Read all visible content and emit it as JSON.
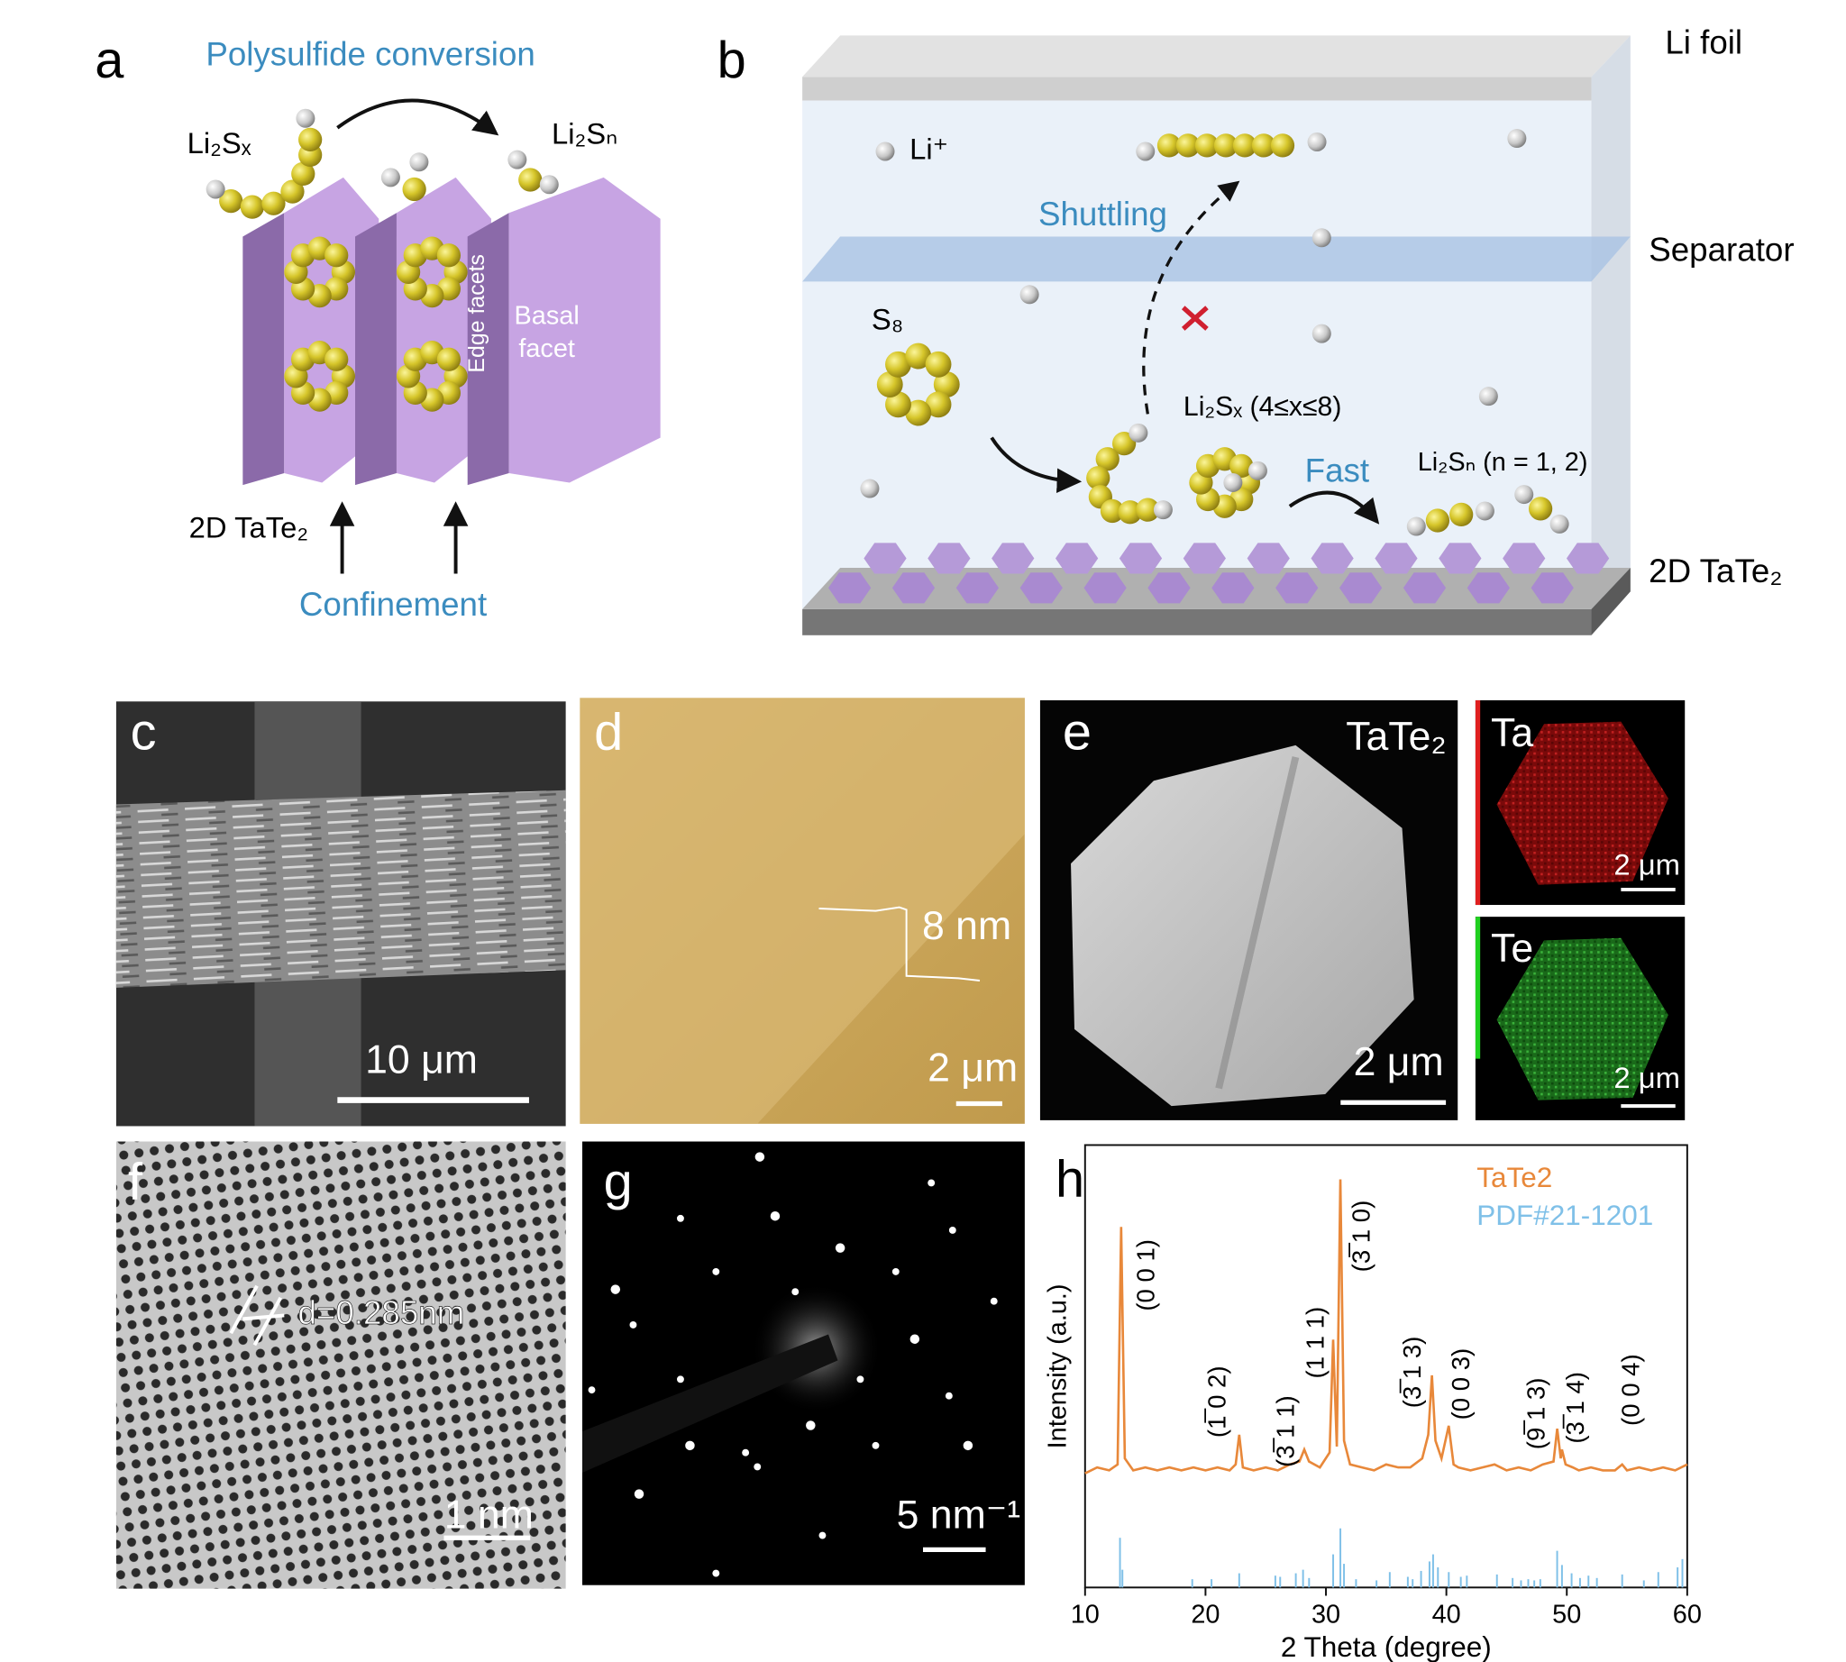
{
  "panels": {
    "a": {
      "label": "a",
      "title": "Polysulfide conversion",
      "reactant": "Li₂Sₓ",
      "product": "Li₂Sₙ",
      "edge": "Edge facets",
      "basal": [
        "Basal",
        "facet"
      ],
      "substrate": "2D TaTe₂",
      "bottom": "Confinement"
    },
    "b": {
      "label": "b",
      "foil": "Li foil",
      "ion": "Li⁺",
      "shuttle": "Shuttling",
      "separator": "Separator",
      "sulfur": "S₈",
      "long_chain": "Li₂Sₓ (4≤x≤8)",
      "fast": "Fast",
      "short_chain": "Li₂Sₙ (n = 1, 2)",
      "substrate": "2D TaTe₂"
    },
    "c": {
      "label": "c",
      "scale": "10 μm"
    },
    "d": {
      "label": "d",
      "height": "8 nm",
      "scale": "2 μm"
    },
    "e": {
      "label": "e",
      "title": "TaTe₂",
      "scale": "2 μm",
      "maps": [
        {
          "element": "Ta",
          "scale": "2 μm"
        },
        {
          "element": "Te",
          "scale": "2 μm"
        }
      ]
    },
    "f": {
      "label": "f",
      "spacing": "d=0.285nm",
      "scale": "1 nm"
    },
    "g": {
      "label": "g",
      "scale": "5 nm⁻¹"
    },
    "h": {
      "label": "h"
    }
  },
  "chart_data": {
    "type": "line",
    "x_label": "2 Theta (degree)",
    "y_label": "Intensity (a.u.)",
    "xlim": [
      10,
      60
    ],
    "xticks": [
      10,
      20,
      30,
      40,
      50,
      60
    ],
    "ylim": [
      0,
      100
    ],
    "series": [
      {
        "name": "TaTe2",
        "color": "#e8883a",
        "x": [
          10,
          11,
          12,
          12.7,
          13,
          13.3,
          14,
          15,
          16,
          17,
          18,
          19,
          20,
          21,
          22,
          22.5,
          22.8,
          23.1,
          24,
          25,
          26,
          27,
          27.8,
          28.2,
          28.6,
          29.5,
          30.3,
          30.6,
          30.9,
          31.2,
          31.5,
          32,
          33,
          34,
          35,
          36,
          37,
          38,
          38.5,
          38.8,
          39.1,
          39.6,
          40.2,
          40.6,
          41,
          42,
          43,
          44,
          45,
          46,
          47,
          48,
          48.9,
          49.2,
          49.5,
          49.6,
          49.9,
          50.5,
          51,
          52,
          53,
          54,
          54.6,
          55,
          56,
          57,
          58,
          59,
          60
        ],
        "values": [
          1,
          3,
          2,
          4,
          84,
          6,
          2,
          3,
          2,
          3,
          2,
          3,
          2,
          3,
          2,
          4,
          14,
          3,
          2,
          3,
          2,
          4,
          5,
          9,
          5,
          3,
          8,
          46,
          10,
          100,
          12,
          4,
          3,
          2,
          4,
          3,
          3,
          6,
          14,
          34,
          12,
          6,
          17,
          4,
          3,
          2,
          3,
          4,
          2,
          3,
          2,
          4,
          5,
          16,
          6,
          9,
          4,
          3,
          2,
          3,
          2,
          2,
          4,
          2,
          3,
          2,
          3,
          2,
          4
        ]
      },
      {
        "name": "PDF#21-1201",
        "color": "#7fc0e8",
        "type": "stick",
        "x": [
          12.9,
          13.1,
          18.9,
          20.5,
          22.8,
          25.8,
          26.2,
          27.5,
          28.1,
          28.6,
          30.6,
          31.2,
          31.5,
          32.5,
          34.2,
          35.3,
          36.8,
          37.2,
          37.9,
          38.6,
          38.9,
          39.3,
          40.2,
          41.2,
          41.7,
          44.2,
          45.5,
          46.2,
          46.8,
          47.3,
          47.8,
          49.2,
          49.6,
          50.4,
          51.1,
          51.8,
          52.5,
          54.6,
          56.4,
          57.6,
          59.2,
          59.6
        ],
        "values": [
          84,
          30,
          14,
          14,
          24,
          20,
          18,
          24,
          30,
          16,
          56,
          100,
          40,
          14,
          12,
          26,
          18,
          14,
          28,
          44,
          56,
          34,
          26,
          18,
          20,
          22,
          16,
          12,
          14,
          12,
          14,
          62,
          38,
          24,
          16,
          20,
          16,
          22,
          12,
          26,
          34,
          48
        ]
      }
    ],
    "annotations": [
      "(0 0 1)",
      "(1̅ 0 2)",
      "(3̅ 1 1)",
      "(1 1 1)",
      "(3̅ 1 0)",
      "(3̅ 1 3)",
      "(0 0 3)",
      "(9̅ 1 3)",
      "(3̅ 1 4)",
      "(0 0 4)"
    ]
  }
}
